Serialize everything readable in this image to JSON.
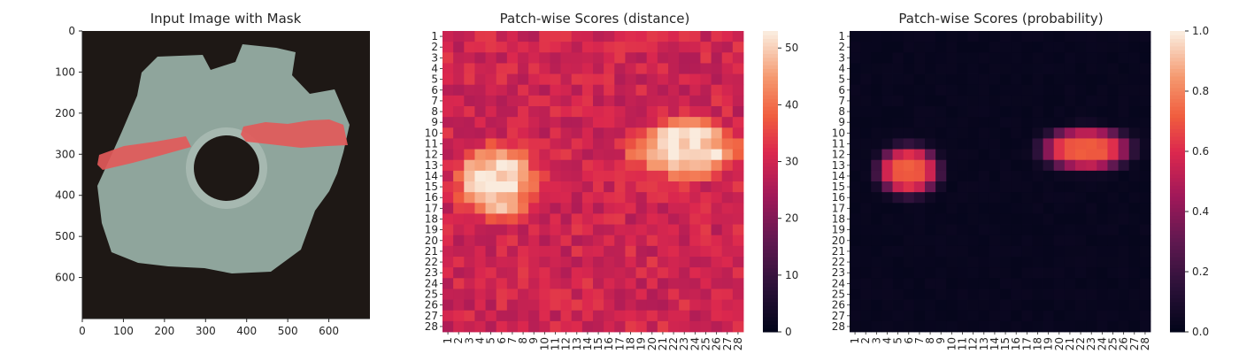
{
  "chart_data": [
    {
      "type": "image",
      "title": "Input Image with Mask",
      "xticks": [
        0,
        100,
        200,
        300,
        400,
        500,
        600
      ],
      "yticks": [
        0,
        100,
        200,
        300,
        400,
        500,
        600
      ],
      "xlim": [
        0,
        700
      ],
      "ylim": [
        700,
        0
      ],
      "grid": false,
      "background_color": "#1e1815",
      "part_color": "#8fa59c",
      "mask_color": "#e25a5a",
      "mask_regions": [
        {
          "name": "left band",
          "x": [
            40,
            240
          ],
          "y": [
            290,
            370
          ]
        },
        {
          "name": "right band",
          "x": [
            390,
            650
          ],
          "y": [
            220,
            290
          ]
        }
      ]
    },
    {
      "type": "heatmap",
      "title": "Patch-wise Scores (distance)",
      "rows": 28,
      "cols": 28,
      "row_labels": [
        "1",
        "2",
        "3",
        "4",
        "5",
        "6",
        "7",
        "8",
        "9",
        "10",
        "11",
        "12",
        "13",
        "14",
        "15",
        "16",
        "17",
        "18",
        "19",
        "20",
        "21",
        "22",
        "23",
        "24",
        "25",
        "26",
        "27",
        "28"
      ],
      "col_labels": [
        "1",
        "2",
        "3",
        "4",
        "5",
        "6",
        "7",
        "8",
        "9",
        "10",
        "11",
        "12",
        "13",
        "14",
        "15",
        "16",
        "17",
        "18",
        "19",
        "20",
        "21",
        "22",
        "23",
        "24",
        "25",
        "26",
        "27",
        "28"
      ],
      "colormap": "rocket",
      "vmin": 0,
      "vmax": 53,
      "colorbar_ticks": [
        0,
        10,
        20,
        30,
        40,
        50
      ],
      "baseline": 30,
      "blobs": [
        {
          "center_row": 14.5,
          "center_col": 5.5,
          "radius_row": 3.2,
          "radius_col": 3.5,
          "peak": 52
        },
        {
          "center_row": 11.5,
          "center_col": 23.0,
          "radius_row": 2.6,
          "radius_col": 4.8,
          "peak": 52
        },
        {
          "center_row": 24.8,
          "center_col": 16.0,
          "radius_row": 1.5,
          "radius_col": 3.0,
          "peak": 10
        }
      ]
    },
    {
      "type": "heatmap",
      "title": "Patch-wise Scores (probability)",
      "rows": 28,
      "cols": 28,
      "row_labels": [
        "1",
        "2",
        "3",
        "4",
        "5",
        "6",
        "7",
        "8",
        "9",
        "10",
        "11",
        "12",
        "13",
        "14",
        "15",
        "16",
        "17",
        "18",
        "19",
        "20",
        "21",
        "22",
        "23",
        "24",
        "25",
        "26",
        "27",
        "28"
      ],
      "col_labels": [
        "1",
        "2",
        "3",
        "4",
        "5",
        "6",
        "7",
        "8",
        "9",
        "10",
        "11",
        "12",
        "13",
        "14",
        "15",
        "16",
        "17",
        "18",
        "19",
        "20",
        "21",
        "22",
        "23",
        "24",
        "25",
        "26",
        "27",
        "28"
      ],
      "colormap": "rocket",
      "vmin": 0.0,
      "vmax": 1.0,
      "colorbar_ticks": [
        0.0,
        0.2,
        0.4,
        0.6,
        0.8,
        1.0
      ],
      "colorbar_tick_labels": [
        "0.0",
        "0.2",
        "0.4",
        "0.6",
        "0.8",
        "1.0"
      ],
      "baseline": 0.02,
      "blobs": [
        {
          "center_row": 13.5,
          "center_col": 6.0,
          "radius_row": 2.2,
          "radius_col": 2.8,
          "peak": 0.72
        },
        {
          "center_row": 11.5,
          "center_col": 22.5,
          "radius_row": 1.9,
          "radius_col": 4.0,
          "peak": 0.72
        }
      ]
    }
  ]
}
